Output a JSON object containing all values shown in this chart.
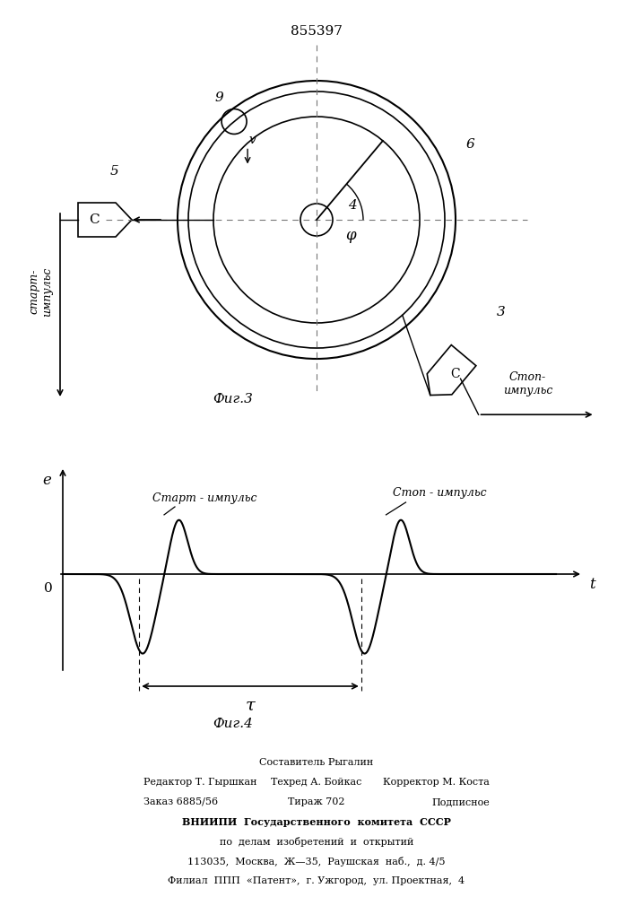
{
  "patent_number": "855397",
  "fig3_caption": "Фиг.3",
  "fig4_caption": "Фиг.4",
  "bg_color": "#ffffff",
  "label_9": "9",
  "label_4": "4",
  "label_6": "6",
  "label_5": "5",
  "label_3": "3",
  "label_v": "v",
  "label_phi": "φ",
  "start_impulse_vert": "старт-\nимпульс",
  "stop_impulse_horiz": "Стоп-\nимпульс",
  "start_label_fig4": "Старт - импульс",
  "stop_label_fig4": "Стоп - импульс",
  "tau_label": "τ",
  "e_label": "e",
  "t_label": "t",
  "zero_label": "0",
  "footer_line1": "Составитель Рыгалин",
  "footer_left2": "Редактор Т. Гыршкан",
  "footer_mid2": "Техред А. Бойкас",
  "footer_right2": "Корректор М. Коста",
  "footer_left3": "Заказ 6885/56",
  "footer_mid3": "Тираж 702",
  "footer_right3": "Подписное",
  "footer_line4": "ВНИИПИ  Государственного  комитета  СССР",
  "footer_line5": "по  делам  изобретений  и  открытий",
  "footer_line6": "113035,  Москва,  Ж—35,  Раушская  наб.,  д. 4/5",
  "footer_line7": "Филиал  ППП  «Патент»,  г. Ужгород,  ул. Проектная,  4"
}
